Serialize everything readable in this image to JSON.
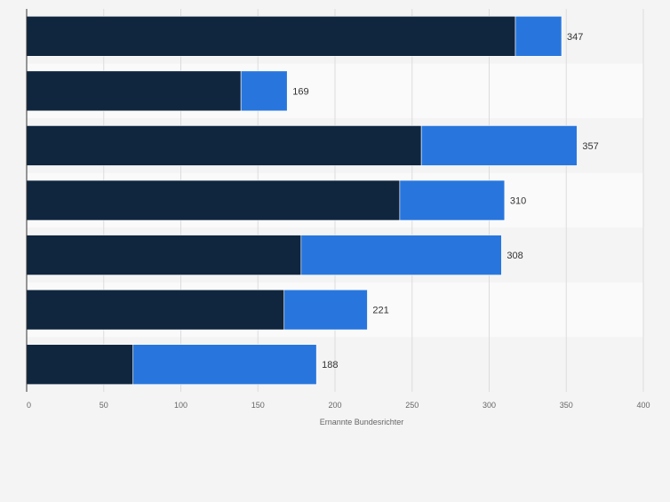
{
  "chart_data": {
    "type": "bar",
    "orientation": "horizontal",
    "stacked": true,
    "categories": [
      "",
      "",
      "",
      "",
      "",
      "",
      ""
    ],
    "series": [
      {
        "values": [
          317,
          139,
          256,
          242,
          178,
          167,
          69
        ],
        "color": "#10263f"
      },
      {
        "values": [
          30,
          30,
          101,
          68,
          130,
          54,
          119
        ],
        "color": "#2876dd"
      }
    ],
    "totals": [
      347,
      169,
      357,
      310,
      308,
      221,
      188
    ],
    "xlabel": "Ernannte Bundesrichter",
    "ylabel": "",
    "xlim": [
      0,
      400
    ],
    "xticks": [
      0,
      50,
      100,
      150,
      200,
      250,
      300,
      350,
      400
    ],
    "grid": true,
    "legend": "none"
  },
  "colors": {
    "background": "#f4f4f4",
    "band_alt": "#fafafa",
    "grid": "#dcdcdc",
    "axis": "#333333",
    "label": "#333333",
    "tick": "#666666"
  }
}
